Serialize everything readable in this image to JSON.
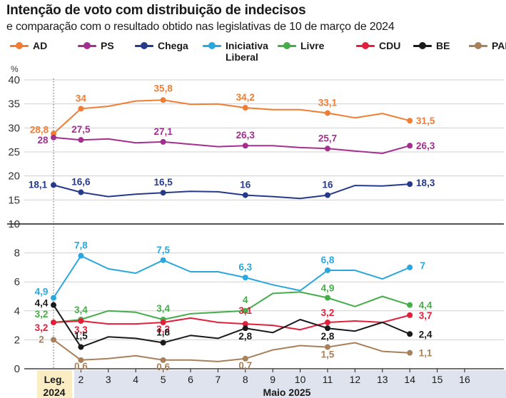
{
  "title": "Intenção de voto com distribuição de indecisos",
  "subtitle": "e comparação com o resultado obtido nas legislativas de 10 de março de 2024",
  "chart_data": {
    "type": "line",
    "ylabel": "%",
    "upper_axis": {
      "ylim": [
        10,
        40
      ],
      "ticks": [
        "10",
        "15",
        "20",
        "25",
        "30",
        "35",
        "40"
      ]
    },
    "lower_axis": {
      "ylim": [
        0,
        10
      ],
      "ticks": [
        "0",
        "2",
        "4",
        "6",
        "8"
      ]
    },
    "x_positions": [
      1,
      2,
      3,
      4,
      5,
      6,
      7,
      8,
      9,
      10,
      11,
      12,
      13,
      14
    ],
    "x_ticks": [
      "2",
      "3",
      "4",
      "5",
      "6",
      "7",
      "8",
      "9",
      "10",
      "11",
      "12",
      "13",
      "14",
      "15",
      "16"
    ],
    "x_group_labels": {
      "left": "Leg.\n2024",
      "right": "Maio 2025"
    },
    "series": [
      {
        "name": "AD",
        "color": "#f07d33",
        "panel": "upper",
        "values": [
          28.8,
          34,
          34.5,
          35.6,
          35.8,
          34.9,
          35,
          34.2,
          33.8,
          33.8,
          33.1,
          32.1,
          33,
          31.5
        ],
        "labels": [
          {
            "i": 0,
            "text": "28,8"
          },
          {
            "i": 1,
            "text": "34"
          },
          {
            "i": 4,
            "text": "35,8"
          },
          {
            "i": 7,
            "text": "34,2"
          },
          {
            "i": 10,
            "text": "33,1"
          },
          {
            "i": 13,
            "text": "31,5"
          }
        ]
      },
      {
        "name": "PS",
        "color": "#a3308f",
        "panel": "upper",
        "values": [
          28,
          27.5,
          27.7,
          26.9,
          27.1,
          26.6,
          26.1,
          26.3,
          26.3,
          25.9,
          25.7,
          25.2,
          24.7,
          26.3
        ],
        "labels": [
          {
            "i": 0,
            "text": "28"
          },
          {
            "i": 1,
            "text": "27,5"
          },
          {
            "i": 4,
            "text": "27,1"
          },
          {
            "i": 7,
            "text": "26,3"
          },
          {
            "i": 10,
            "text": "25,7"
          },
          {
            "i": 13,
            "text": "26,3"
          }
        ]
      },
      {
        "name": "Chega",
        "color": "#263a8c",
        "panel": "upper",
        "values": [
          18.1,
          16.6,
          15.7,
          16.2,
          16.5,
          16.8,
          16.7,
          16,
          15.7,
          15.3,
          16,
          18,
          17.9,
          18.3
        ],
        "labels": [
          {
            "i": 0,
            "text": "18,1"
          },
          {
            "i": 1,
            "text": "16,6"
          },
          {
            "i": 4,
            "text": "16,5"
          },
          {
            "i": 7,
            "text": "16"
          },
          {
            "i": 10,
            "text": "16"
          },
          {
            "i": 13,
            "text": "18,3"
          }
        ]
      },
      {
        "name": "Iniciativa\nLiberal",
        "color": "#2aa7df",
        "panel": "lower",
        "values": [
          4.9,
          7.8,
          6.9,
          6.6,
          7.5,
          6.7,
          6.7,
          6.3,
          5.8,
          5.4,
          6.8,
          6.8,
          6.2,
          7
        ],
        "labels": [
          {
            "i": 0,
            "text": "4,9"
          },
          {
            "i": 1,
            "text": "7,8"
          },
          {
            "i": 4,
            "text": "7,5"
          },
          {
            "i": 7,
            "text": "6,3"
          },
          {
            "i": 10,
            "text": "6,8"
          },
          {
            "i": 13,
            "text": "7"
          }
        ]
      },
      {
        "name": "Livre",
        "color": "#45ad49",
        "panel": "lower",
        "values": [
          3.2,
          3.4,
          4,
          3.9,
          3.4,
          3.8,
          3.9,
          4,
          5.2,
          5.3,
          4.9,
          4.3,
          5,
          4.4
        ],
        "labels": [
          {
            "i": 0,
            "text": "3,2"
          },
          {
            "i": 1,
            "text": "3,4"
          },
          {
            "i": 4,
            "text": "3,4"
          },
          {
            "i": 7,
            "text": "4"
          },
          {
            "i": 10,
            "text": "4,9"
          },
          {
            "i": 13,
            "text": "4,4"
          }
        ]
      },
      {
        "name": "CDU",
        "color": "#e3203b",
        "panel": "lower",
        "values": [
          3.2,
          3.3,
          3.1,
          3.1,
          3.2,
          3.5,
          3.2,
          3.1,
          3,
          2.7,
          3.2,
          3.3,
          3.2,
          3.7
        ],
        "labels": [
          {
            "i": 0,
            "text": "3,2"
          },
          {
            "i": 1,
            "text": "3,3"
          },
          {
            "i": 4,
            "text": "3,2"
          },
          {
            "i": 7,
            "text": "3,1"
          },
          {
            "i": 10,
            "text": "3,2"
          },
          {
            "i": 13,
            "text": "3,7"
          }
        ]
      },
      {
        "name": "BE",
        "color": "#1a1a1a",
        "panel": "lower",
        "values": [
          4.4,
          1.5,
          2.2,
          2.1,
          1.8,
          2.3,
          2.1,
          2.8,
          2.5,
          3.4,
          2.8,
          2.6,
          3.2,
          2.4
        ],
        "labels": [
          {
            "i": 0,
            "text": "4,4"
          },
          {
            "i": 1,
            "text": "1,5"
          },
          {
            "i": 4,
            "text": "1,8"
          },
          {
            "i": 7,
            "text": "2,8"
          },
          {
            "i": 10,
            "text": "2,8"
          },
          {
            "i": 13,
            "text": "2,4"
          }
        ]
      },
      {
        "name": "PAN",
        "color": "#a8805a",
        "panel": "lower",
        "values": [
          2,
          0.6,
          0.7,
          0.9,
          0.6,
          0.6,
          0.5,
          0.7,
          1.3,
          1.6,
          1.5,
          1.8,
          1.2,
          1.1
        ],
        "labels": [
          {
            "i": 0,
            "text": "2"
          },
          {
            "i": 1,
            "text": "0,6"
          },
          {
            "i": 4,
            "text": "0,6"
          },
          {
            "i": 7,
            "text": "0,7"
          },
          {
            "i": 10,
            "text": "1,5"
          },
          {
            "i": 13,
            "text": "1,1"
          }
        ]
      }
    ]
  }
}
